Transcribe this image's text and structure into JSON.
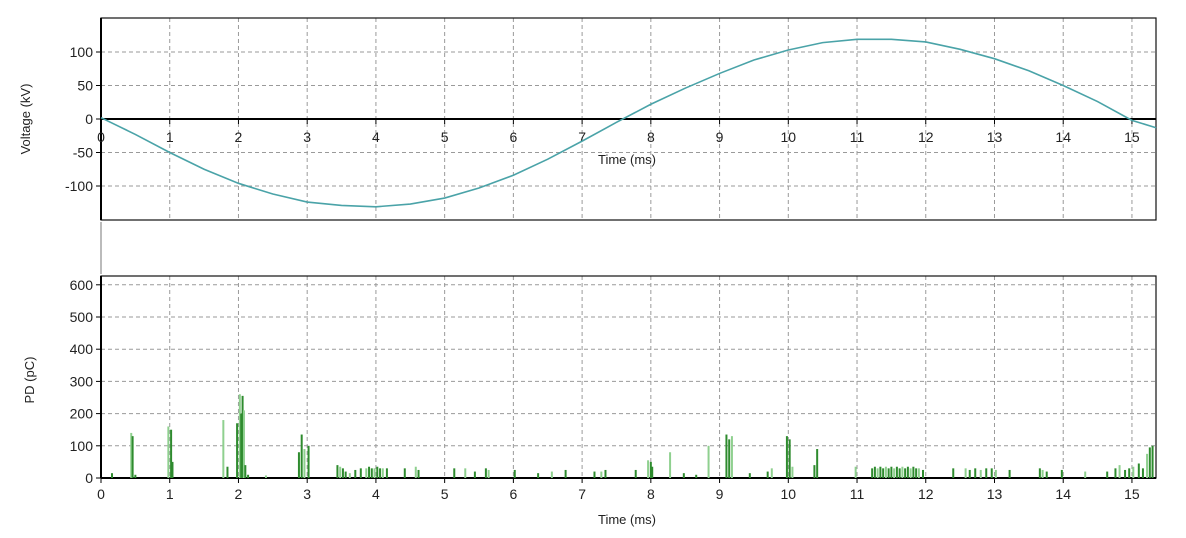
{
  "chart_data": [
    {
      "type": "line",
      "xlabel": "Time (ms)",
      "ylabel": "Voltage (kV)",
      "xlim": [
        0,
        15.35
      ],
      "ylim": [
        -150,
        150
      ],
      "xticks": [
        0,
        1,
        2,
        3,
        4,
        5,
        6,
        7,
        8,
        9,
        10,
        11,
        12,
        13,
        14,
        15
      ],
      "yticks": [
        100,
        50,
        0,
        -50,
        -100
      ],
      "grid": true,
      "series": [
        {
          "color": "#4aa3a8",
          "x": [
            0,
            0.5,
            1,
            1.5,
            2,
            2.5,
            3,
            3.5,
            4,
            4.5,
            5,
            5.5,
            6,
            6.5,
            7,
            7.5,
            8,
            8.5,
            9,
            9.5,
            10,
            10.5,
            11,
            11.5,
            12,
            12.5,
            13,
            13.5,
            14,
            14.5,
            15,
            15.35
          ],
          "y": [
            2,
            -23,
            -50,
            -75,
            -96,
            -112,
            -124,
            -129,
            -131,
            -127,
            -118,
            -103,
            -84,
            -60,
            -33,
            -5,
            22,
            46,
            68,
            88,
            103,
            114,
            119,
            119,
            115,
            104,
            90,
            72,
            50,
            26,
            -2,
            -13
          ]
        }
      ]
    },
    {
      "type": "bar",
      "xlabel": "Time (ms)",
      "ylabel": "PD (pC)",
      "xlim": [
        0,
        15.35
      ],
      "ylim": [
        0,
        620
      ],
      "xticks": [
        0,
        1,
        2,
        3,
        4,
        5,
        6,
        7,
        8,
        9,
        10,
        11,
        12,
        13,
        14,
        15
      ],
      "yticks": [
        600,
        500,
        400,
        300,
        200,
        100,
        0
      ],
      "grid": true,
      "series": [
        {
          "name": "",
          "color": "#2e8b2e",
          "light_color": "#8fd08f",
          "x": [
            0.16,
            0.44,
            0.46,
            0.5,
            0.98,
            1.02,
            1.04,
            1.78,
            1.84,
            1.98,
            2.02,
            2.04,
            2.06,
            2.08,
            2.1,
            2.14,
            2.4,
            2.88,
            2.92,
            2.96,
            3.02,
            3.44,
            3.48,
            3.52,
            3.56,
            3.62,
            3.7,
            3.78,
            3.86,
            3.9,
            3.94,
            3.98,
            4.02,
            4.06,
            4.1,
            4.16,
            4.42,
            4.58,
            4.62,
            5.14,
            5.3,
            5.44,
            5.6,
            5.64,
            6.02,
            6.36,
            6.56,
            6.76,
            7.18,
            7.28,
            7.34,
            7.78,
            7.96,
            8.0,
            8.02,
            8.28,
            8.48,
            8.66,
            8.84,
            9.1,
            9.14,
            9.18,
            9.44,
            9.7,
            9.76,
            9.98,
            10.02,
            10.06,
            10.38,
            10.42,
            10.98,
            11.22,
            11.26,
            11.3,
            11.34,
            11.38,
            11.42,
            11.46,
            11.5,
            11.54,
            11.58,
            11.62,
            11.66,
            11.7,
            11.74,
            11.78,
            11.82,
            11.86,
            11.9,
            11.96,
            12.4,
            12.58,
            12.64,
            12.72,
            12.8,
            12.88,
            12.96,
            13.02,
            13.22,
            13.66,
            13.7,
            13.76,
            13.98,
            14.32,
            14.64,
            14.76,
            14.82,
            14.9,
            14.96,
            15.02,
            15.1,
            15.16,
            15.22,
            15.26,
            15.3
          ],
          "values": [
            15,
            140,
            130,
            10,
            160,
            150,
            50,
            180,
            35,
            170,
            260,
            200,
            255,
            210,
            40,
            10,
            8,
            80,
            135,
            90,
            100,
            40,
            35,
            30,
            20,
            15,
            25,
            30,
            30,
            35,
            30,
            30,
            35,
            30,
            30,
            30,
            30,
            35,
            25,
            30,
            30,
            20,
            30,
            25,
            25,
            15,
            20,
            25,
            20,
            20,
            25,
            25,
            55,
            50,
            35,
            80,
            15,
            10,
            100,
            135,
            120,
            130,
            15,
            20,
            30,
            130,
            120,
            35,
            40,
            90,
            35,
            30,
            35,
            30,
            35,
            30,
            35,
            30,
            35,
            30,
            35,
            30,
            35,
            30,
            35,
            30,
            35,
            30,
            30,
            25,
            30,
            30,
            25,
            30,
            25,
            30,
            30,
            25,
            25,
            30,
            25,
            20,
            25,
            20,
            20,
            30,
            40,
            25,
            30,
            35,
            45,
            30,
            75,
            95,
            100
          ]
        }
      ]
    }
  ]
}
